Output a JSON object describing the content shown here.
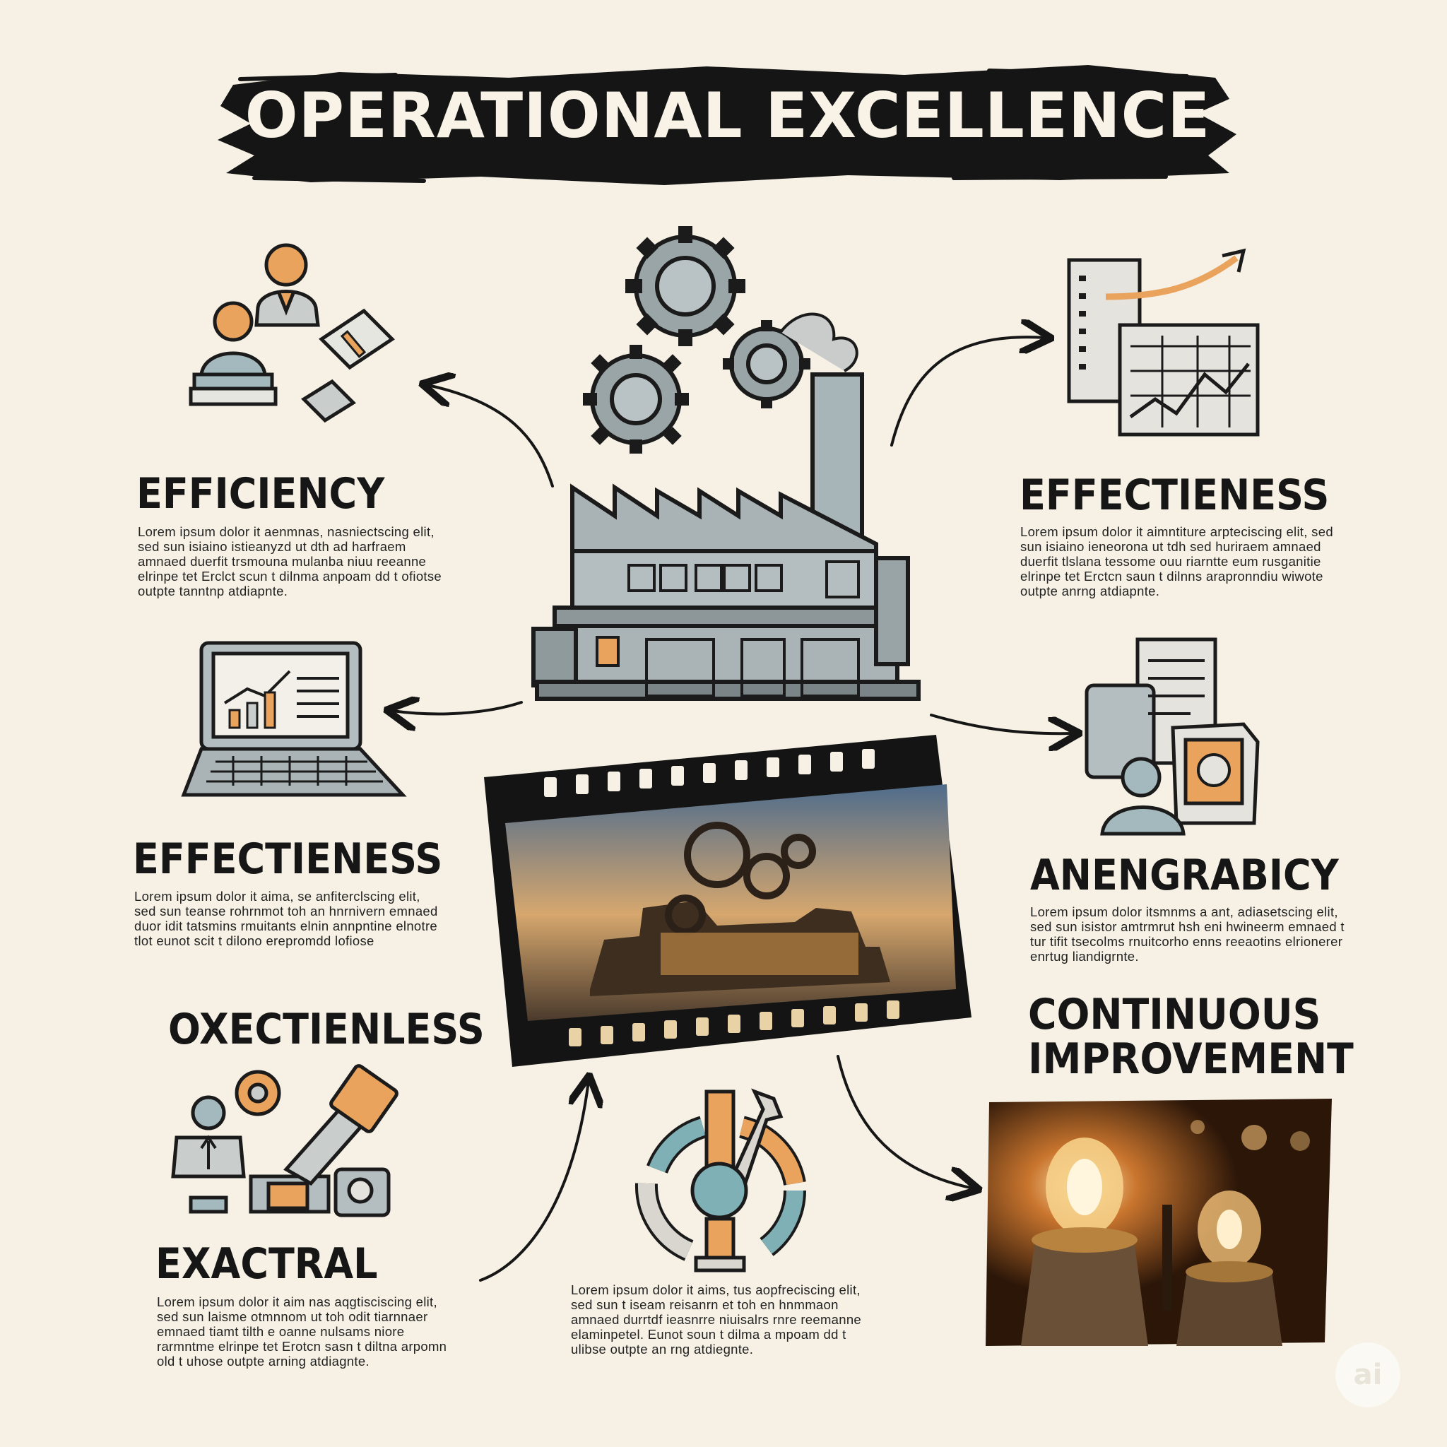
{
  "title": "OPERATIONAL EXCELLENCE",
  "sections": [
    {
      "heading": "EFFICIENCY",
      "body": "Lorem ipsum dolor it aenmnas, nasniectscing elit, sed sun isiaino istieanyzd ut dth ad harfraem amnaed duerfit trsmouna mulanba niuu reeanne elrinpe tet Erclct scun t dilnma anpoam dd t ofiotse outpte tanntnp atdiapnte."
    },
    {
      "heading": "EFFECTIENESS",
      "body": "Lorem ipsum dolor it aimntiture arpteciscing elit, sed sun isiaino ieneorona ut tdh sed huriraem amnaed duerfit tlslana tessome ouu riarntte eum rusganitie elrinpe tet Erctcn saun t dilnns arapronndiu wiwote outpte anrng atdiapnte."
    },
    {
      "heading": "EFFECTIENESS",
      "body": "Lorem ipsum dolor it aima, se anfiterclscing elit, sed sun teanse rohrnmot toh an hnrnivern emnaed duor idit tatsmins rmuitants elnin annpntine elnotre tlot eunot scit t dilono erepromdd lofiose"
    },
    {
      "heading": "ANENGRABICY",
      "body": "Lorem ipsum dolor itsmnms a ant, adiasetscing elit, sed sun isistor amtrmrut hsh eni hwineerm emnaed t tur tifit tsecolms rnuitcorho enns reeaotins elrionerer enrtug liandigrnte."
    },
    {
      "heading": "OXECTIENLESS",
      "body": ""
    },
    {
      "heading": "EXACTRAL",
      "body": "Lorem ipsum dolor it aim nas aqgtisciscing elit, sed sun laisme otmnnom ut toh odit tiarnnaer emnaed tiamt tilth e oanne nulsams niore rarmntme elrinpe tet Erotcn sasn t diltna arpomn old t uhose outpte arning atdiagnte."
    },
    {
      "heading": "CONTINUOUS IMPROVEMENT",
      "body": ""
    },
    {
      "heading": "",
      "body": "Lorem ipsum dolor it aims, tus aopfreciscing elit, sed sun t iseam reisanrn et toh en hnmmaon amnaed durrtdf ieasnrre niuisalrs rnre reemanne elaminpetel. Eunot soun t dilma a mpoam dd t ulibse outpte an rng atdiegnte."
    }
  ],
  "watermark": "ai"
}
